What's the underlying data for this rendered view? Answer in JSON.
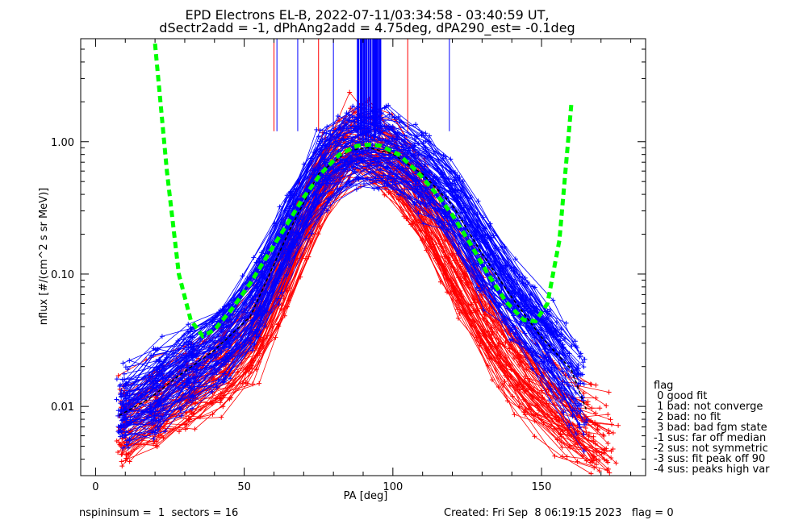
{
  "chart_data": {
    "type": "line",
    "title_line1": "EPD Electrons EL-B, 2022-07-11/03:34:58 - 03:40:59 UT,",
    "title_line2": "dSectr2add = -1, dPhAng2add = 4.75deg, dPA290_est=  -0.1deg",
    "xlabel": "PA [deg]",
    "ylabel": "nflux [#/(cm^2 s sr MeV)]",
    "xlim": [
      -5,
      185
    ],
    "ylim": [
      0.003,
      6.0
    ],
    "yscale": "log",
    "x_ticks": [
      0,
      50,
      100,
      150
    ],
    "x_tick_labels": [
      "0",
      "50",
      "100",
      "150"
    ],
    "y_ticks": [
      0.01,
      0.1,
      1.0
    ],
    "y_tick_labels": [
      "0.01",
      "0.10",
      "1.00"
    ],
    "colors": {
      "red": "#ff0000",
      "blue": "#0000ff",
      "fit": "#00ff00",
      "ref": "#000000"
    },
    "series": [
      {
        "color": "red",
        "description": "bundle of red traces (many)",
        "x": [
          8,
          18,
          28,
          40,
          52,
          65,
          75,
          85,
          92,
          100,
          110,
          120,
          130,
          140,
          150,
          160,
          170,
          175
        ],
        "y": [
          0.007,
          0.009,
          0.012,
          0.018,
          0.03,
          0.12,
          0.45,
          1.1,
          0.95,
          0.7,
          0.35,
          0.12,
          0.05,
          0.022,
          0.012,
          0.008,
          0.006,
          0.005
        ]
      },
      {
        "color": "blue",
        "description": "bundle of blue traces (many)",
        "x": [
          8,
          18,
          28,
          40,
          52,
          65,
          75,
          85,
          92,
          100,
          110,
          120,
          130,
          140,
          150,
          160,
          165
        ],
        "y": [
          0.009,
          0.012,
          0.018,
          0.028,
          0.05,
          0.22,
          0.6,
          0.9,
          0.95,
          0.85,
          0.6,
          0.35,
          0.15,
          0.07,
          0.035,
          0.02,
          0.01
        ]
      },
      {
        "color": "fit",
        "description": "green dashed fit",
        "x": [
          20,
          24,
          28,
          32,
          36,
          40,
          46,
          52,
          58,
          64,
          70,
          76,
          82,
          88,
          92,
          96,
          102,
          108,
          114,
          120,
          126,
          132,
          138,
          144,
          148,
          152,
          156,
          160
        ],
        "y": [
          5.5,
          0.6,
          0.1,
          0.045,
          0.034,
          0.038,
          0.055,
          0.085,
          0.14,
          0.23,
          0.38,
          0.58,
          0.8,
          0.93,
          0.95,
          0.93,
          0.8,
          0.6,
          0.42,
          0.28,
          0.17,
          0.1,
          0.062,
          0.045,
          0.044,
          0.06,
          0.18,
          1.9
        ]
      }
    ]
  },
  "legend": {
    "title": "flag",
    "items": [
      " 0 good fit",
      " 1 bad: not converge",
      " 2 bad: no fit",
      " 3 bad: bad fgm state",
      "-1 sus: far off median",
      "-2 sus: not symmetric",
      "-3 sus: fit peak off 90",
      "-4 sus: peaks high var"
    ]
  },
  "footer": {
    "left": "nspininsum =  1  sectors = 16",
    "right": "Created: Fri Sep  8 06:19:15 2023   flag = 0"
  }
}
